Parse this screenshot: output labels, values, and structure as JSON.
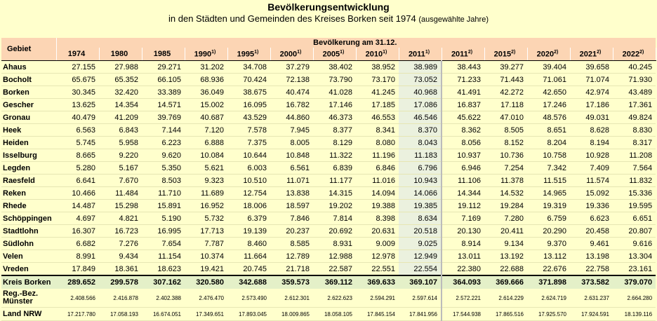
{
  "header": {
    "title": "Bevölkerungsentwicklung",
    "subtitle_main": "in den Städten und Gemeinden des Kreises Borken seit 1974",
    "subtitle_small": "(ausgewählte Jahre)"
  },
  "table": {
    "gebiet_header": "Gebiet",
    "group_header": "Bevölkerung am 31.12.",
    "years": [
      {
        "label": "1974",
        "sup": ""
      },
      {
        "label": "1980",
        "sup": ""
      },
      {
        "label": "1985",
        "sup": ""
      },
      {
        "label": "1990",
        "sup": "1)"
      },
      {
        "label": "1995",
        "sup": "1)"
      },
      {
        "label": "2000",
        "sup": "1)"
      },
      {
        "label": "2005",
        "sup": "1)"
      },
      {
        "label": "2010",
        "sup": "1)"
      },
      {
        "label": "2011",
        "sup": "1)"
      },
      {
        "label": "2011",
        "sup": "2)"
      },
      {
        "label": "2015",
        "sup": "2)"
      },
      {
        "label": "2020",
        "sup": "2)"
      },
      {
        "label": "2021",
        "sup": "2)"
      },
      {
        "label": "2022",
        "sup": "2)"
      }
    ],
    "rows": [
      {
        "name": "Ahaus",
        "values": [
          "27.155",
          "27.988",
          "29.271",
          "31.202",
          "34.708",
          "37.279",
          "38.402",
          "38.952",
          "38.989",
          "38.443",
          "39.277",
          "39.404",
          "39.658",
          "40.245"
        ]
      },
      {
        "name": "Bocholt",
        "values": [
          "65.675",
          "65.352",
          "66.105",
          "68.936",
          "70.424",
          "72.138",
          "73.790",
          "73.170",
          "73.052",
          "71.233",
          "71.443",
          "71.061",
          "71.074",
          "71.930"
        ]
      },
      {
        "name": "Borken",
        "values": [
          "30.345",
          "32.420",
          "33.389",
          "36.049",
          "38.675",
          "40.474",
          "41.028",
          "41.245",
          "40.968",
          "41.491",
          "42.272",
          "42.650",
          "42.974",
          "43.489"
        ]
      },
      {
        "name": "Gescher",
        "values": [
          "13.625",
          "14.354",
          "14.571",
          "15.002",
          "16.095",
          "16.782",
          "17.146",
          "17.185",
          "17.086",
          "16.837",
          "17.118",
          "17.246",
          "17.186",
          "17.361"
        ]
      },
      {
        "name": "Gronau",
        "values": [
          "40.479",
          "41.209",
          "39.769",
          "40.687",
          "43.529",
          "44.860",
          "46.373",
          "46.553",
          "46.546",
          "45.622",
          "47.010",
          "48.576",
          "49.031",
          "49.824"
        ]
      },
      {
        "name": "Heek",
        "values": [
          "6.563",
          "6.843",
          "7.144",
          "7.120",
          "7.578",
          "7.945",
          "8.377",
          "8.341",
          "8.370",
          "8.362",
          "8.505",
          "8.651",
          "8.628",
          "8.830"
        ]
      },
      {
        "name": "Heiden",
        "values": [
          "5.745",
          "5.958",
          "6.223",
          "6.888",
          "7.375",
          "8.005",
          "8.129",
          "8.080",
          "8.043",
          "8.056",
          "8.152",
          "8.204",
          "8.194",
          "8.317"
        ]
      },
      {
        "name": "Isselburg",
        "values": [
          "8.665",
          "9.220",
          "9.620",
          "10.084",
          "10.644",
          "10.848",
          "11.322",
          "11.196",
          "11.183",
          "10.937",
          "10.736",
          "10.758",
          "10.928",
          "11.208"
        ]
      },
      {
        "name": "Legden",
        "values": [
          "5.280",
          "5.167",
          "5.350",
          "5.621",
          "6.003",
          "6.561",
          "6.839",
          "6.846",
          "6.796",
          "6.946",
          "7.254",
          "7.342",
          "7.409",
          "7.564"
        ]
      },
      {
        "name": "Raesfeld",
        "values": [
          "6.641",
          "7.670",
          "8.503",
          "9.323",
          "10.510",
          "11.071",
          "11.177",
          "11.016",
          "10.943",
          "11.106",
          "11.378",
          "11.515",
          "11.574",
          "11.832"
        ]
      },
      {
        "name": "Reken",
        "values": [
          "10.466",
          "11.484",
          "11.710",
          "11.689",
          "12.754",
          "13.838",
          "14.315",
          "14.094",
          "14.066",
          "14.344",
          "14.532",
          "14.965",
          "15.092",
          "15.336"
        ]
      },
      {
        "name": "Rhede",
        "values": [
          "14.487",
          "15.298",
          "15.891",
          "16.952",
          "18.006",
          "18.597",
          "19.202",
          "19.388",
          "19.385",
          "19.112",
          "19.284",
          "19.319",
          "19.336",
          "19.595"
        ]
      },
      {
        "name": "Schöppingen",
        "values": [
          "4.697",
          "4.821",
          "5.190",
          "5.732",
          "6.379",
          "7.846",
          "7.814",
          "8.398",
          "8.634",
          "7.169",
          "7.280",
          "6.759",
          "6.623",
          "6.651"
        ]
      },
      {
        "name": "Stadtlohn",
        "values": [
          "16.307",
          "16.723",
          "16.995",
          "17.713",
          "19.139",
          "20.237",
          "20.692",
          "20.631",
          "20.518",
          "20.130",
          "20.411",
          "20.290",
          "20.458",
          "20.807"
        ]
      },
      {
        "name": "Südlohn",
        "values": [
          "6.682",
          "7.276",
          "7.654",
          "7.787",
          "8.460",
          "8.585",
          "8.931",
          "9.009",
          "9.025",
          "8.914",
          "9.134",
          "9.370",
          "9.461",
          "9.616"
        ]
      },
      {
        "name": "Velen",
        "values": [
          "8.991",
          "9.434",
          "11.154",
          "10.374",
          "11.664",
          "12.789",
          "12.988",
          "12.978",
          "12.949",
          "13.011",
          "13.192",
          "13.112",
          "13.198",
          "13.304"
        ]
      },
      {
        "name": "Vreden",
        "values": [
          "17.849",
          "18.361",
          "18.623",
          "19.421",
          "20.745",
          "21.718",
          "22.587",
          "22.551",
          "22.554",
          "22.380",
          "22.688",
          "22.676",
          "22.758",
          "23.161"
        ]
      }
    ],
    "kreis": {
      "name": "Kreis Borken",
      "values": [
        "289.652",
        "299.578",
        "307.162",
        "320.580",
        "342.688",
        "359.573",
        "369.112",
        "369.633",
        "369.107",
        "364.093",
        "369.666",
        "371.898",
        "373.582",
        "379.070"
      ]
    },
    "reg": {
      "name": "Reg.-Bez. Münster",
      "values": [
        "2.408.566",
        "2.416.878",
        "2.402.388",
        "2.476.470",
        "2.573.490",
        "2.612.301",
        "2.622.623",
        "2.594.291",
        "2.597.614",
        "2.572.221",
        "2.614.229",
        "2.624.719",
        "2.631.237",
        "2.664.280"
      ]
    },
    "nrw": {
      "name": "Land NRW",
      "values": [
        "17.217.780",
        "17.058.193",
        "16.674.051",
        "17.349.651",
        "17.893.045",
        "18.009.865",
        "18.058.105",
        "17.845.154",
        "17.841.956",
        "17.544.938",
        "17.865.516",
        "17.925.570",
        "17.924.591",
        "18.139.116"
      ]
    }
  }
}
